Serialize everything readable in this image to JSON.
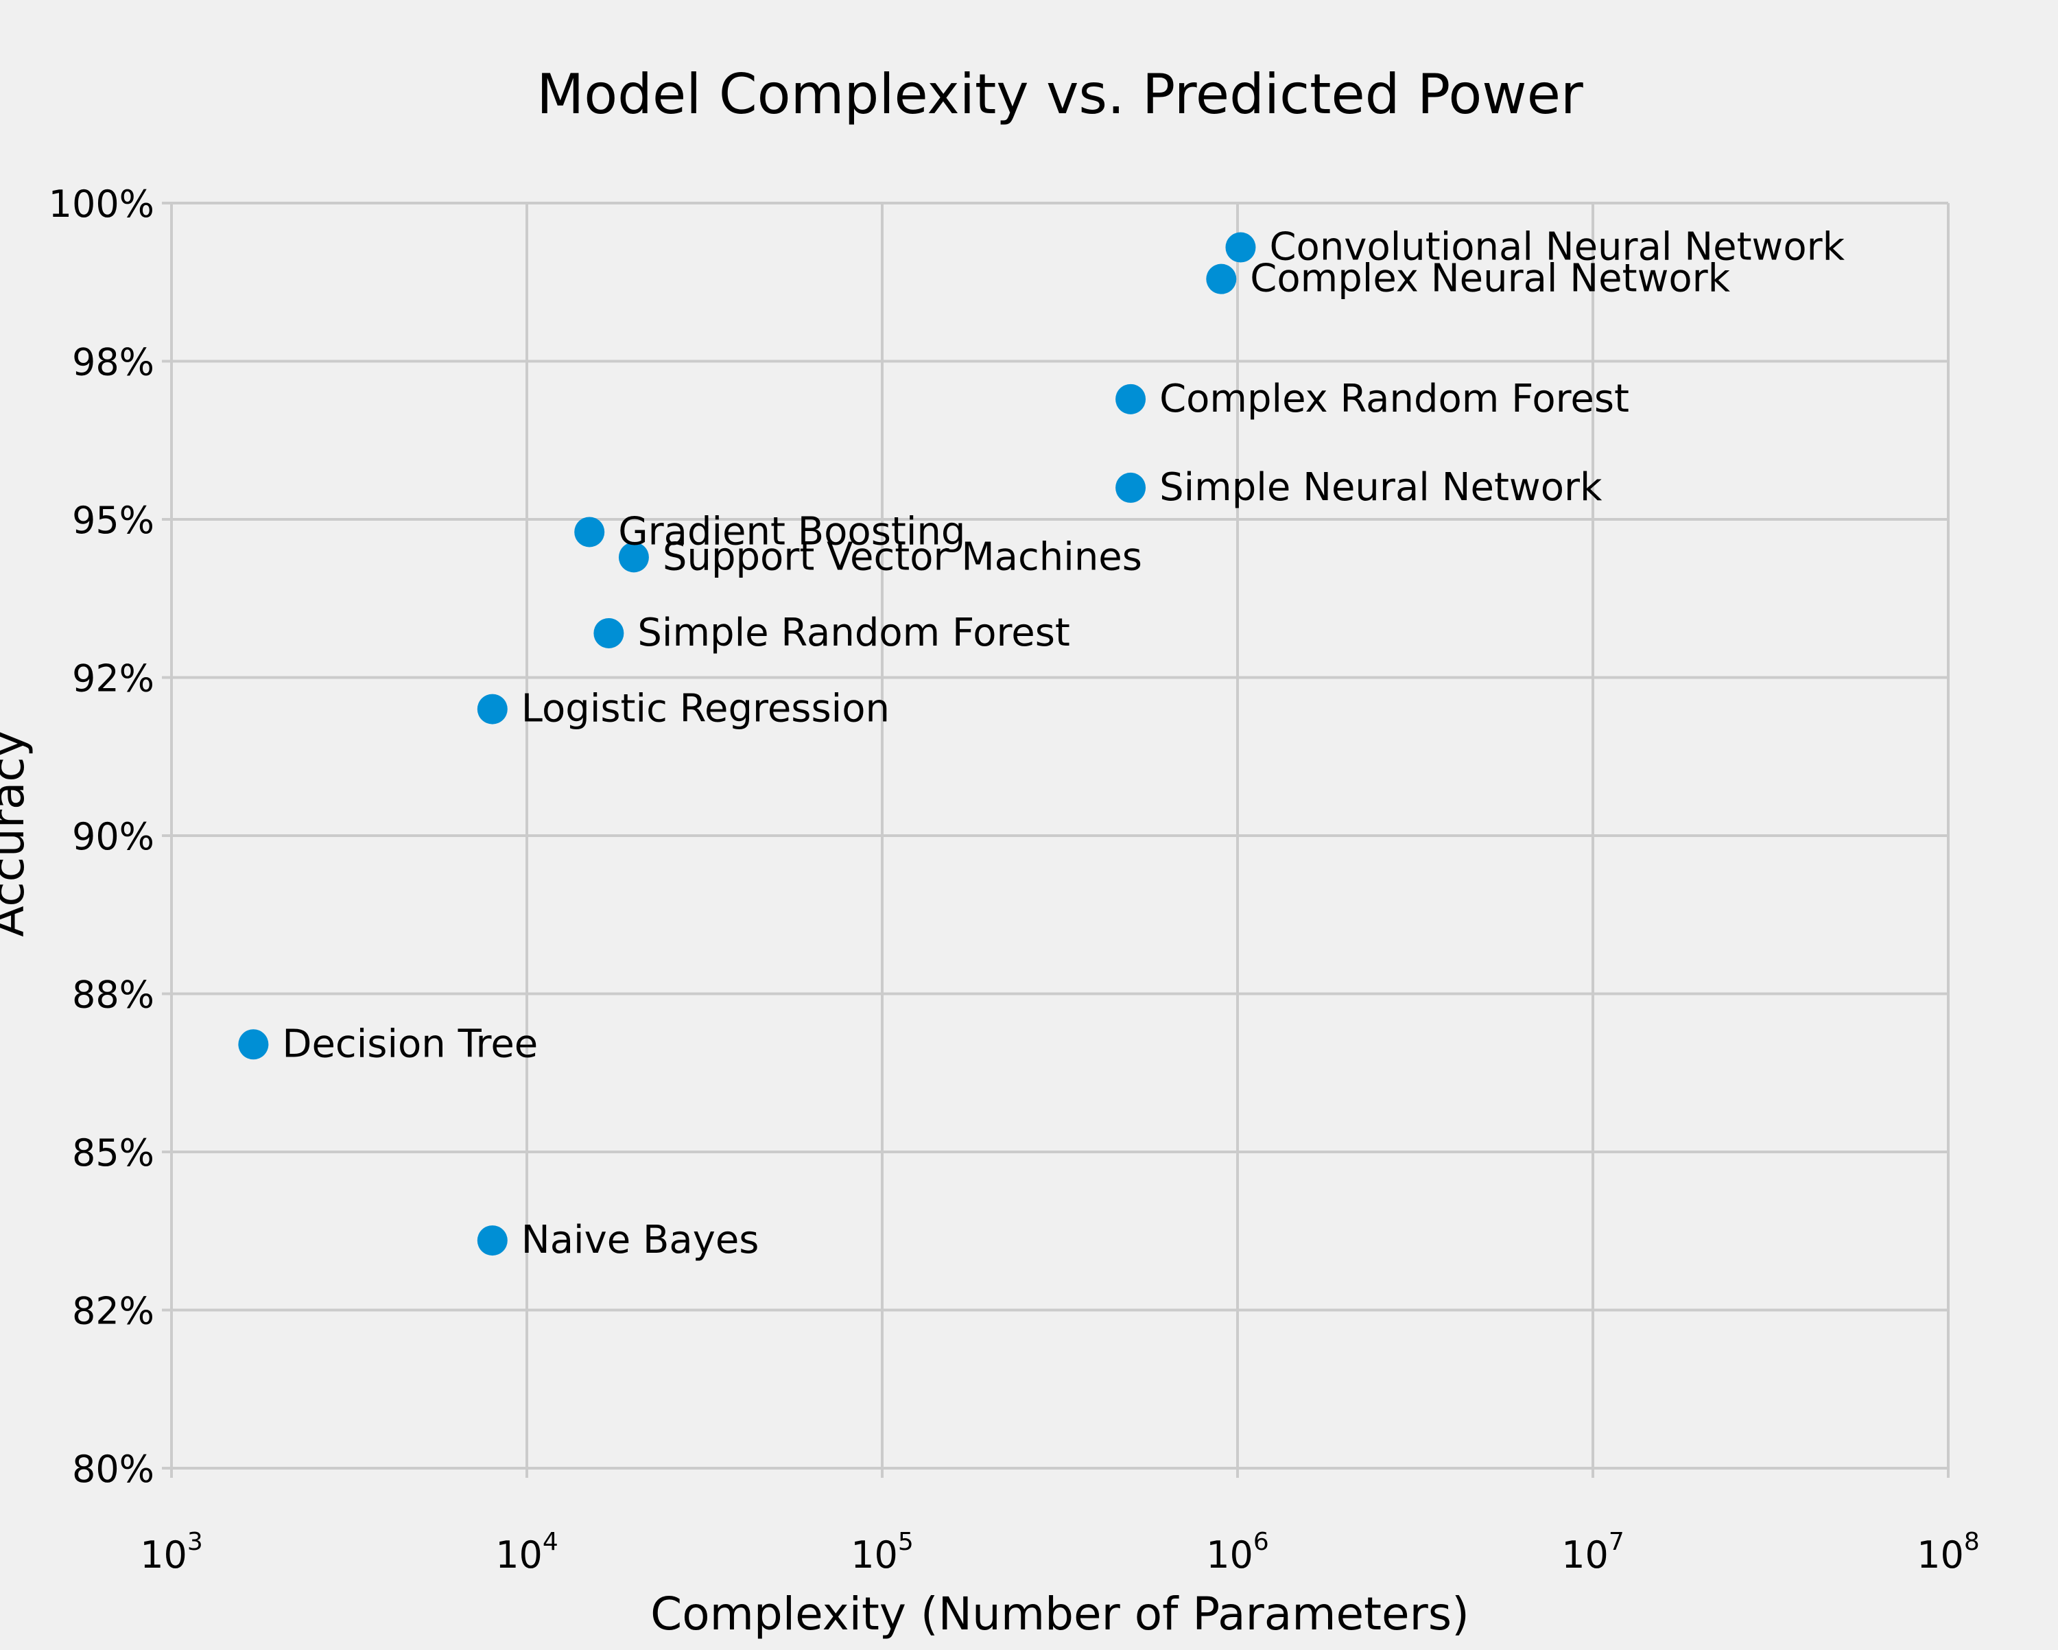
{
  "chart_data": {
    "type": "scatter",
    "title": "Model Complexity vs. Predicted Power",
    "xlabel": "Complexity (Number of Parameters)",
    "ylabel": "Accuracy",
    "xscale": "log",
    "xlim": [
      1000,
      100000000
    ],
    "ylim": [
      80,
      100
    ],
    "x_ticks": [
      {
        "base": "10",
        "exp": "3"
      },
      {
        "base": "10",
        "exp": "4"
      },
      {
        "base": "10",
        "exp": "5"
      },
      {
        "base": "10",
        "exp": "6"
      },
      {
        "base": "10",
        "exp": "7"
      },
      {
        "base": "10",
        "exp": "8"
      }
    ],
    "x_tick_values": [
      1000,
      10000,
      100000,
      1000000,
      10000000,
      100000000
    ],
    "y_ticks": [
      "80%",
      "82%",
      "85%",
      "88%",
      "90%",
      "92%",
      "95%",
      "98%",
      "100%"
    ],
    "y_tick_values": [
      80,
      82.5,
      85,
      87.5,
      90,
      92.5,
      95,
      97.5,
      100
    ],
    "grid": true,
    "marker_color": "#008fd5",
    "points": [
      {
        "label": "Decision Tree",
        "x": 1700,
        "y": 86.7
      },
      {
        "label": "Naive Bayes",
        "x": 8000,
        "y": 83.6
      },
      {
        "label": "Logistic Regression",
        "x": 8000,
        "y": 92.0
      },
      {
        "label": "Simple Random Forest",
        "x": 17000,
        "y": 93.2
      },
      {
        "label": "Gradient Boosting",
        "x": 15000,
        "y": 94.8
      },
      {
        "label": "Support Vector Machines",
        "x": 20000,
        "y": 94.4
      },
      {
        "label": "Simple Neural Network",
        "x": 500000,
        "y": 95.5
      },
      {
        "label": "Complex Random Forest",
        "x": 500000,
        "y": 96.9
      },
      {
        "label": "Complex Neural Network",
        "x": 900000,
        "y": 98.8
      },
      {
        "label": "Convolutional Neural Network",
        "x": 1020000,
        "y": 99.3
      }
    ]
  }
}
